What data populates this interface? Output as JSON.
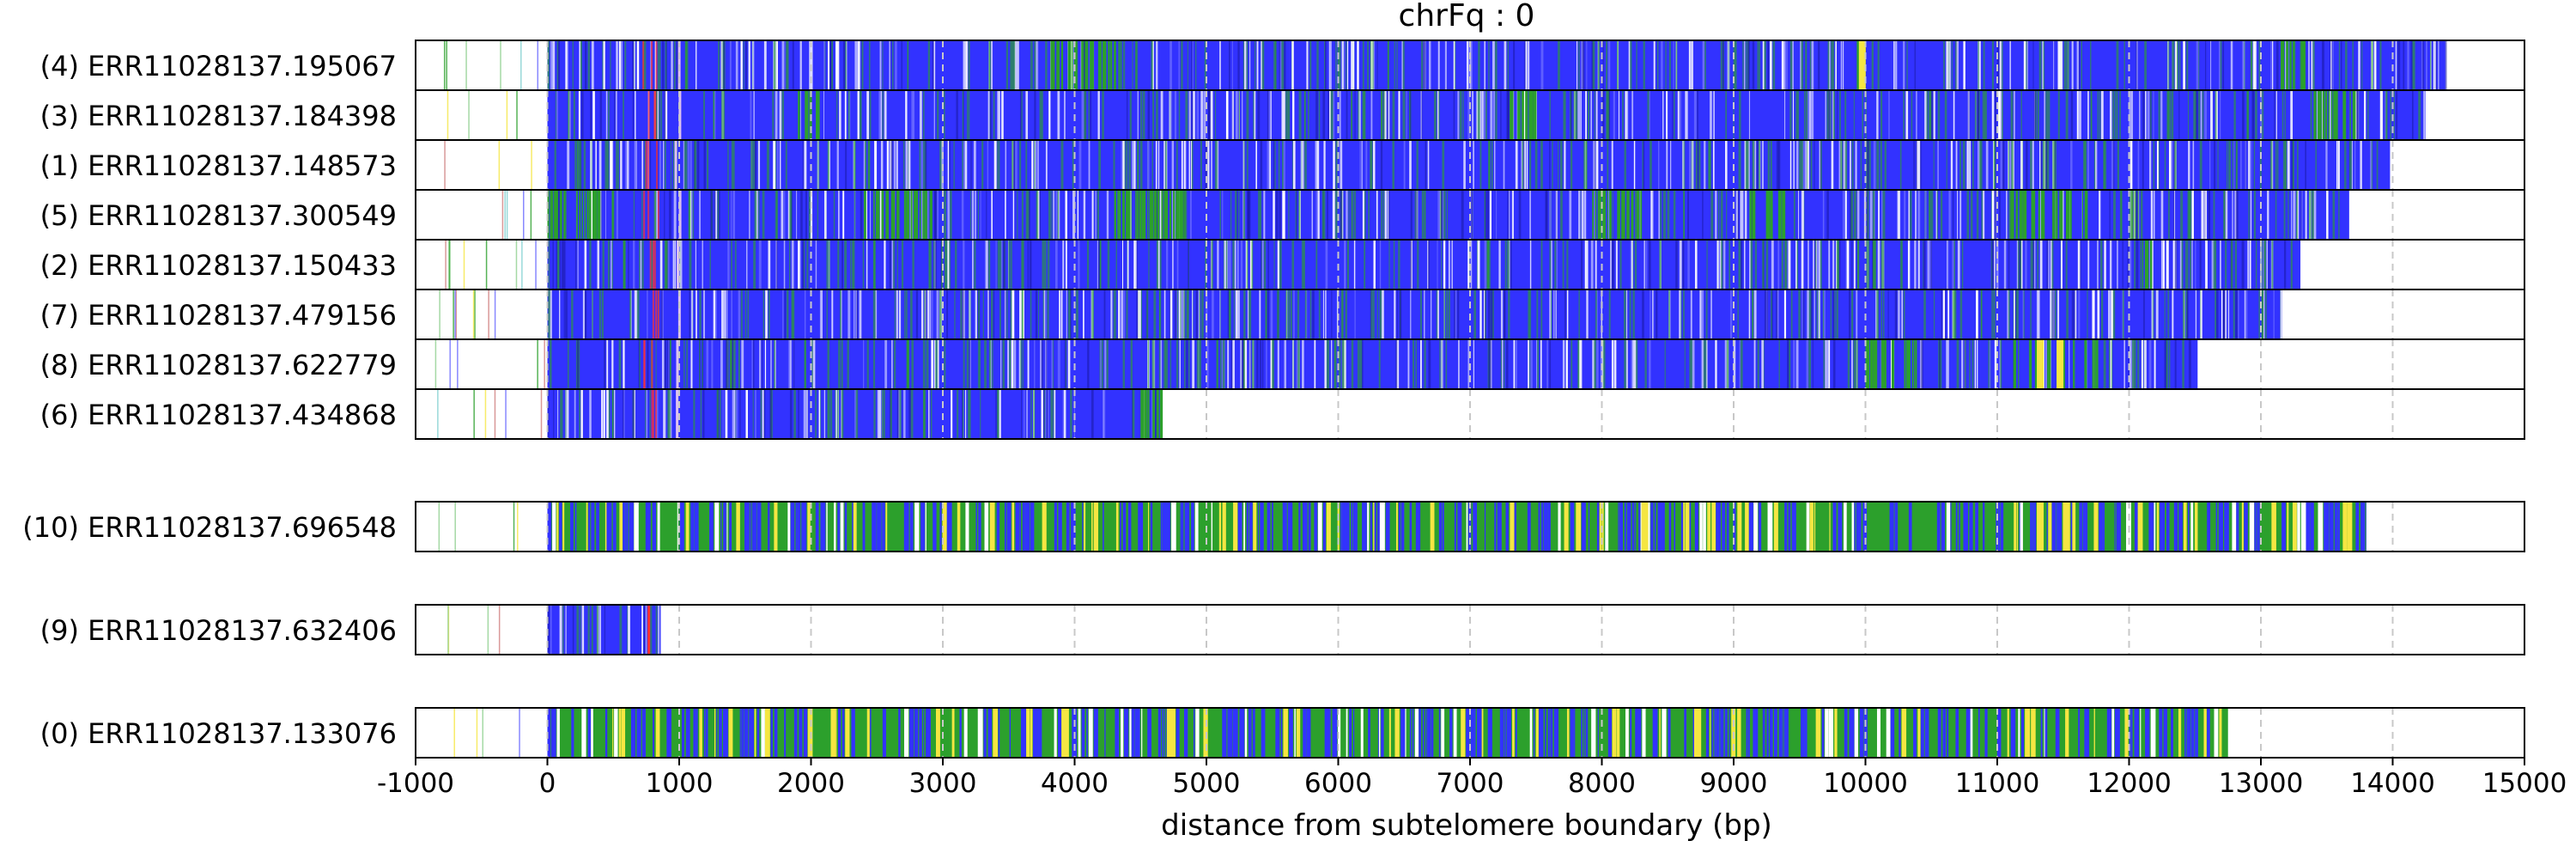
{
  "chart_data": {
    "type": "heatmap",
    "title": "chrFq : 0",
    "xlabel": "distance from subtelomere boundary (bp)",
    "xlim": [
      -1000,
      15000
    ],
    "xticks": [
      -1000,
      0,
      1000,
      2000,
      3000,
      4000,
      5000,
      6000,
      7000,
      8000,
      9000,
      10000,
      11000,
      12000,
      13000,
      14000,
      15000
    ],
    "grid": "vertical dashed at x ticks",
    "colors": {
      "blue": "#3232ff",
      "green": "#2ca02c",
      "yellow": "#f5e642",
      "red": "#ff3030",
      "white": "#ffffff",
      "grid": "#c8c8c8"
    },
    "groups": [
      {
        "reads": [
          {
            "label": "(4) ERR11028137.195067",
            "start": 0,
            "end": 14400,
            "profile": "blue",
            "green_regions": [
              [
                3800,
                4300
              ],
              [
                9900,
                10000
              ],
              [
                13150,
                13350
              ]
            ],
            "yellow_spots": [
              9950
            ]
          },
          {
            "label": "(3) ERR11028137.184398",
            "start": 0,
            "end": 14250,
            "profile": "blue",
            "green_regions": [
              [
                1900,
                2100
              ],
              [
                7300,
                7500
              ],
              [
                13400,
                13700
              ]
            ],
            "yellow_spots": []
          },
          {
            "label": "(1) ERR11028137.148573",
            "start": 0,
            "end": 13980,
            "profile": "blue",
            "green_regions": [],
            "yellow_spots": []
          },
          {
            "label": "(5) ERR11028137.300549",
            "start": 0,
            "end": 13670,
            "profile": "blue",
            "green_regions": [
              [
                0,
                500
              ],
              [
                2400,
                2900
              ],
              [
                4300,
                4800
              ],
              [
                7900,
                8300
              ],
              [
                9100,
                9400
              ],
              [
                11100,
                11700
              ]
            ],
            "yellow_spots": []
          },
          {
            "label": "(2) ERR11028137.150433",
            "start": 0,
            "end": 13300,
            "profile": "blue",
            "green_regions": [
              [
                12100,
                12200
              ]
            ],
            "yellow_spots": []
          },
          {
            "label": "(7) ERR11028137.479156",
            "start": 0,
            "end": 13160,
            "profile": "blue",
            "green_regions": [],
            "yellow_spots": []
          },
          {
            "label": "(8) ERR11028137.622779",
            "start": 0,
            "end": 12520,
            "profile": "blue",
            "green_regions": [
              [
                10000,
                10400
              ],
              [
                11100,
                11800
              ]
            ],
            "yellow_spots": [
              11300,
              11450
            ]
          },
          {
            "label": "(6) ERR11028137.434868",
            "start": 0,
            "end": 4650,
            "profile": "blue",
            "green_regions": [
              [
                4500,
                4650
              ]
            ],
            "yellow_spots": []
          }
        ]
      },
      {
        "reads": [
          {
            "label": "(10) ERR11028137.696548",
            "start": 0,
            "end": 13800,
            "profile": "mixed",
            "green_regions": [],
            "yellow_spots": [
              8300,
              11300,
              11500
            ]
          }
        ]
      },
      {
        "reads": [
          {
            "label": "(9) ERR11028137.632406",
            "start": 0,
            "end": 860,
            "profile": "blue",
            "green_regions": [],
            "yellow_spots": []
          }
        ]
      },
      {
        "reads": [
          {
            "label": "(0) ERR11028137.133076",
            "start": 0,
            "end": 12750,
            "profile": "mixed",
            "green_regions": [],
            "yellow_spots": [
              3900,
              4700,
              8700
            ]
          }
        ]
      }
    ]
  }
}
